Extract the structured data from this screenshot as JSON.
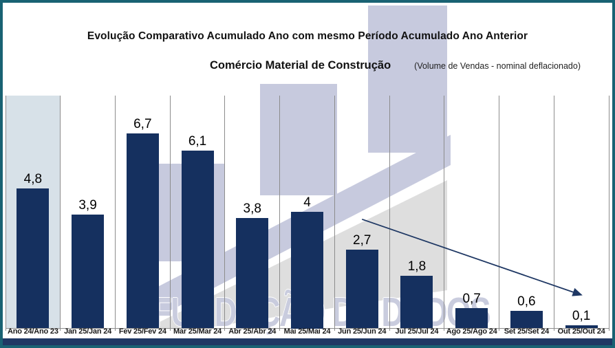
{
  "window": {
    "border_color": "#196273",
    "footer_bar_color": "#1f3864"
  },
  "header": {
    "title": "Evolução Comparativo Acumulado Ano com mesmo Período Acumulado Ano Anterior",
    "subtitle": "Comércio Material de Construção",
    "subtitle_note": "(Volume de Vendas - nominal deflacionado)"
  },
  "watermark": {
    "text": "FUNDAÇÃO DE DADOS"
  },
  "chart_data": {
    "type": "bar",
    "title": "Evolução Comparativo Acumulado Ano com mesmo Período Acumulado Ano Anterior",
    "subtitle": "Comércio Material de Construção (Volume de Vendas - nominal deflacionado)",
    "categories": [
      "Ano 24/Ano 23",
      "Jan 25/Jan 24",
      "Fev 25/Fev 24",
      "Mar 25/Mar 24",
      "Abr 25/Abr 24",
      "Mai 25/Mai 24",
      "Jun 25/Jun 24",
      "Jul 25/Jul 24",
      "Ago 25/Ago 24",
      "Set 25/Set 24",
      "Out 25/Out 24"
    ],
    "values": [
      4.8,
      3.9,
      6.7,
      6.1,
      3.8,
      4,
      2.7,
      1.8,
      0.7,
      0.6,
      0.1
    ],
    "value_labels": [
      "4,8",
      "3,9",
      "6,7",
      "6,1",
      "3,8",
      "4",
      "2,7",
      "1,8",
      "0,7",
      "0,6",
      "0,1"
    ],
    "xlabel": "",
    "ylabel": "",
    "ylim": [
      0,
      8
    ],
    "grid": "vertical-category-separators",
    "legend": "none",
    "bar_color": "#15305f",
    "first_category_highlight_color": "#d7e1e8",
    "background_accent_colors": {
      "lavender": "#c7cade",
      "gray": "#dedede"
    },
    "trend_arrow": {
      "color": "#1f3864",
      "from": {
        "category_index": 6,
        "value": 3.75
      },
      "to": {
        "category_index": 10,
        "value": 1.15
      }
    }
  }
}
